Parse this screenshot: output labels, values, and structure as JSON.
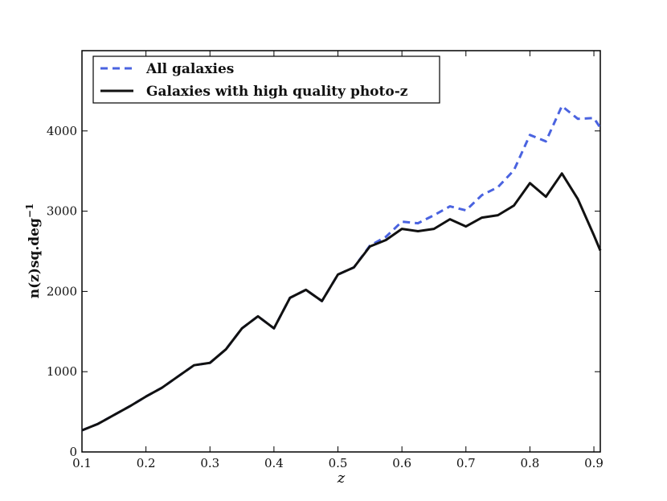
{
  "chart_data": {
    "type": "line",
    "xlabel": "z",
    "ylabel": "n(z)sq.deg",
    "ylabel_superscript": "−1",
    "xlim": [
      0.1,
      0.91
    ],
    "ylim": [
      0,
      5000
    ],
    "xticks": [
      0.1,
      0.2,
      0.3,
      0.4,
      0.5,
      0.6,
      0.7,
      0.8,
      0.9
    ],
    "xtick_labels": [
      "0.1",
      "0.2",
      "0.3",
      "0.4",
      "0.5",
      "0.6",
      "0.7",
      "0.8",
      "0.9"
    ],
    "yticks": [
      0,
      1000,
      2000,
      3000,
      4000
    ],
    "ytick_labels": [
      "0",
      "1000",
      "2000",
      "3000",
      "4000"
    ],
    "legend_position": "top-left",
    "grid": false,
    "series": [
      {
        "name": "All galaxies",
        "color": "#4a63e0",
        "style": "dashed",
        "x": [
          0.1,
          0.125,
          0.15,
          0.175,
          0.2,
          0.225,
          0.25,
          0.275,
          0.3,
          0.325,
          0.35,
          0.375,
          0.4,
          0.425,
          0.45,
          0.475,
          0.5,
          0.525,
          0.55,
          0.575,
          0.6,
          0.625,
          0.65,
          0.675,
          0.7,
          0.725,
          0.75,
          0.775,
          0.8,
          0.825,
          0.85,
          0.875,
          0.9,
          0.91
        ],
        "y": [
          270,
          350,
          460,
          570,
          690,
          800,
          940,
          1080,
          1110,
          1280,
          1540,
          1690,
          1540,
          1920,
          2020,
          1880,
          2210,
          2300,
          2570,
          2680,
          2870,
          2850,
          2950,
          3060,
          3010,
          3200,
          3300,
          3510,
          3950,
          3870,
          4310,
          4150,
          4160,
          4040
        ]
      },
      {
        "name": "Galaxies with high quality photo-z",
        "color": "#111111",
        "style": "solid",
        "x": [
          0.1,
          0.125,
          0.15,
          0.175,
          0.2,
          0.225,
          0.25,
          0.275,
          0.3,
          0.325,
          0.35,
          0.375,
          0.4,
          0.425,
          0.45,
          0.475,
          0.5,
          0.525,
          0.55,
          0.575,
          0.6,
          0.625,
          0.65,
          0.675,
          0.7,
          0.725,
          0.75,
          0.775,
          0.8,
          0.825,
          0.85,
          0.875,
          0.9,
          0.91
        ],
        "y": [
          270,
          350,
          460,
          570,
          690,
          800,
          940,
          1080,
          1110,
          1280,
          1540,
          1690,
          1540,
          1920,
          2020,
          1880,
          2210,
          2300,
          2560,
          2640,
          2780,
          2750,
          2780,
          2900,
          2810,
          2920,
          2950,
          3070,
          3350,
          3180,
          3470,
          3150,
          2700,
          2510
        ]
      }
    ]
  }
}
